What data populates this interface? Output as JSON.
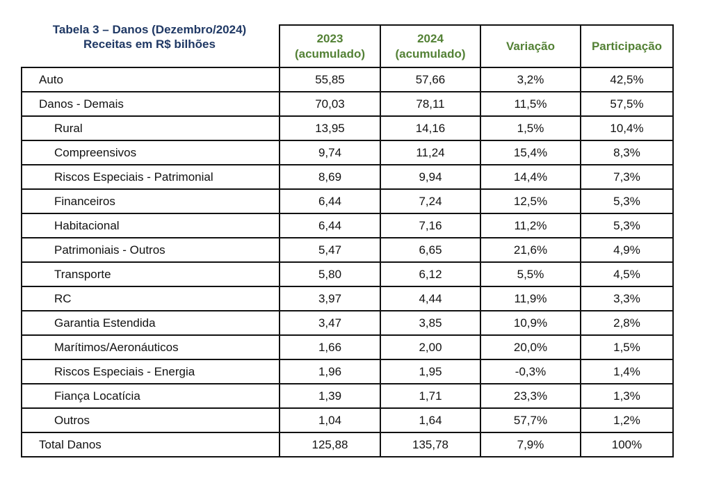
{
  "title": {
    "line1": "Tabela 3 – Danos (Dezembro/2024)",
    "line2": "Receitas em R$ bilhões"
  },
  "colors": {
    "title": "#1f3864",
    "header": "#538135",
    "border": "#111111"
  },
  "headers": [
    {
      "line1": "2023",
      "line2": "(acumulado)"
    },
    {
      "line1": "2024",
      "line2": "(acumulado)"
    },
    {
      "line1": "Variação",
      "line2": ""
    },
    {
      "line1": "Participação",
      "line2": ""
    }
  ],
  "rows": [
    {
      "label": "Auto",
      "indent": false,
      "v2023": "55,85",
      "v2024": "57,66",
      "variacao": "3,2%",
      "participacao": "42,5%"
    },
    {
      "label": "Danos - Demais",
      "indent": false,
      "v2023": "70,03",
      "v2024": "78,11",
      "variacao": "11,5%",
      "participacao": "57,5%"
    },
    {
      "label": "Rural",
      "indent": true,
      "v2023": "13,95",
      "v2024": "14,16",
      "variacao": "1,5%",
      "participacao": "10,4%"
    },
    {
      "label": "Compreensivos",
      "indent": true,
      "v2023": "9,74",
      "v2024": "11,24",
      "variacao": "15,4%",
      "participacao": "8,3%"
    },
    {
      "label": "Riscos Especiais - Patrimonial",
      "indent": true,
      "v2023": "8,69",
      "v2024": "9,94",
      "variacao": "14,4%",
      "participacao": "7,3%"
    },
    {
      "label": "Financeiros",
      "indent": true,
      "v2023": "6,44",
      "v2024": "7,24",
      "variacao": "12,5%",
      "participacao": "5,3%"
    },
    {
      "label": "Habitacional",
      "indent": true,
      "v2023": "6,44",
      "v2024": "7,16",
      "variacao": "11,2%",
      "participacao": "5,3%"
    },
    {
      "label": "Patrimoniais - Outros",
      "indent": true,
      "v2023": "5,47",
      "v2024": "6,65",
      "variacao": "21,6%",
      "participacao": "4,9%"
    },
    {
      "label": "Transporte",
      "indent": true,
      "v2023": "5,80",
      "v2024": "6,12",
      "variacao": "5,5%",
      "participacao": "4,5%"
    },
    {
      "label": "RC",
      "indent": true,
      "v2023": "3,97",
      "v2024": "4,44",
      "variacao": "11,9%",
      "participacao": "3,3%"
    },
    {
      "label": "Garantia Estendida",
      "indent": true,
      "v2023": "3,47",
      "v2024": "3,85",
      "variacao": "10,9%",
      "participacao": "2,8%"
    },
    {
      "label": "Marítimos/Aeronáuticos",
      "indent": true,
      "v2023": "1,66",
      "v2024": "2,00",
      "variacao": "20,0%",
      "participacao": "1,5%"
    },
    {
      "label": "Riscos Especiais - Energia",
      "indent": true,
      "v2023": "1,96",
      "v2024": "1,95",
      "variacao": "-0,3%",
      "participacao": "1,4%"
    },
    {
      "label": "Fiança Locatícia",
      "indent": true,
      "v2023": "1,39",
      "v2024": "1,71",
      "variacao": "23,3%",
      "participacao": "1,3%"
    },
    {
      "label": "Outros",
      "indent": true,
      "v2023": "1,04",
      "v2024": "1,64",
      "variacao": "57,7%",
      "participacao": "1,2%"
    },
    {
      "label": "Total Danos",
      "indent": false,
      "v2023": "125,88",
      "v2024": "135,78",
      "variacao": "7,9%",
      "participacao": "100%"
    }
  ]
}
